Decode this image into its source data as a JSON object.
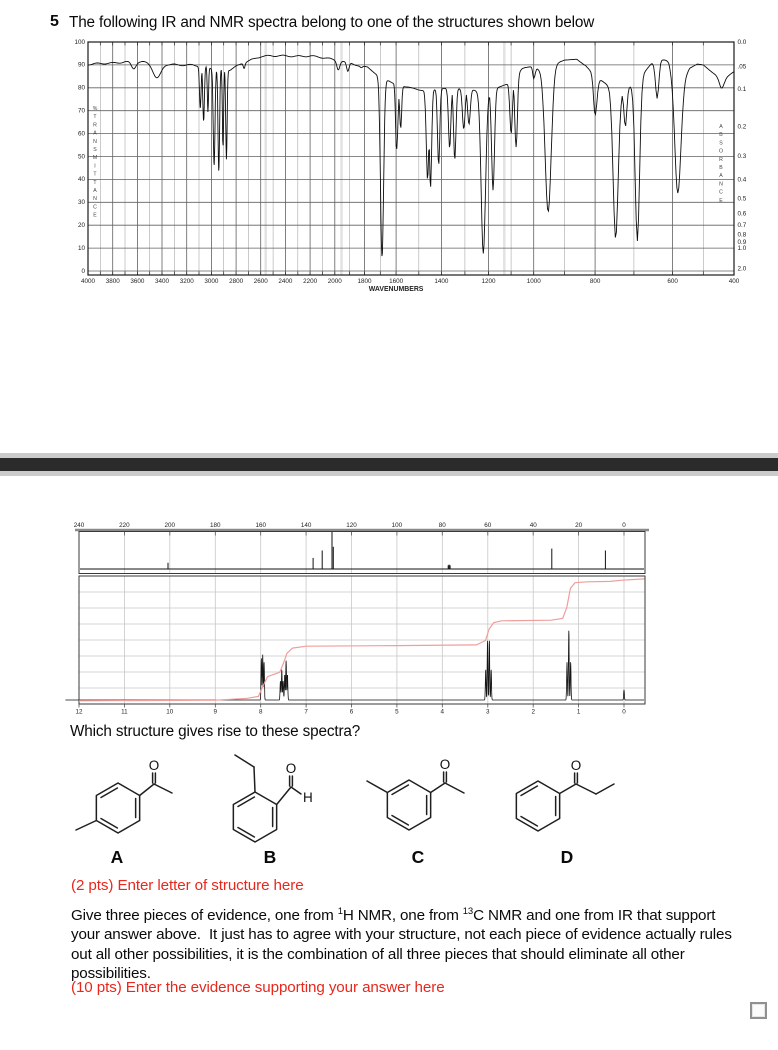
{
  "page": {
    "question_number": "5",
    "title": "The following IR and NMR spectra belong to one of the structures shown below",
    "question": "Which structure gives rise to these spectra?",
    "structure_prompt": "(2 pts) Enter letter of structure here",
    "evidence_prompt": "(10 pts) Enter the evidence supporting your answer here",
    "evidence_segments": [
      {
        "t": "Give three pieces of evidence, one from "
      },
      {
        "sup": "1"
      },
      {
        "t": "H NMR, one from "
      },
      {
        "sup": "13"
      },
      {
        "t": "C NMR and one from IR that support your answer above.  It just has to agree with your structure, not each piece of evidence actually rules out all other possibilities, it is the combination of all three pieces that should eliminate all other possibilities."
      }
    ]
  },
  "structures": [
    {
      "letter": "A"
    },
    {
      "letter": "B"
    },
    {
      "letter": "C"
    },
    {
      "letter": "D"
    }
  ],
  "colors": {
    "accent_red": "#e8271d",
    "separator_dark": "#2b2b2b",
    "separator_light": "#cbcbcb",
    "integral_red": "#f09e9b",
    "curve_black": "#0d0d0d",
    "grid_light": "#c8c8c8",
    "grid_dark": "#606060"
  },
  "chart_data": [
    {
      "type": "line",
      "name": "ir_spectrum",
      "xlabel": "WAVENUMBERS",
      "ylabel_left": "%TRANSMITTANCE",
      "ylabel_right": "ABSORBANCE",
      "x_axis_reversed": true,
      "x_ticks": [
        4000,
        3800,
        3600,
        3400,
        3200,
        3000,
        2800,
        2600,
        2400,
        2200,
        2000,
        1800,
        1600,
        1400,
        1200,
        1000,
        800,
        600,
        400
      ],
      "y_ticks_left": [
        100,
        90,
        80,
        70,
        60,
        50,
        40,
        30,
        20,
        10,
        0
      ],
      "y_ticks_right": [
        "0.0",
        ".05",
        "0.1",
        "0.2",
        "0.3",
        "0.4",
        "0.5",
        "0.6",
        "0.7",
        "0.8",
        "0.9",
        "1.0",
        "2.0"
      ],
      "x_scale_anchors": [
        [
          4000,
          0
        ],
        [
          2000,
          0.382
        ],
        [
          1800,
          0.428
        ],
        [
          1600,
          0.477
        ],
        [
          1400,
          0.547
        ],
        [
          1200,
          0.62
        ],
        [
          1000,
          0.69
        ],
        [
          800,
          0.785
        ],
        [
          600,
          0.905
        ],
        [
          400,
          1
        ]
      ],
      "baseline_percentT": [
        [
          4000,
          90
        ],
        [
          3700,
          91.5
        ],
        [
          3400,
          90.5
        ],
        [
          3150,
          90
        ],
        [
          2980,
          88
        ],
        [
          2850,
          88
        ],
        [
          2750,
          91
        ],
        [
          2600,
          93.5
        ],
        [
          2400,
          94
        ],
        [
          2200,
          94
        ],
        [
          2050,
          92.5
        ],
        [
          1900,
          91
        ],
        [
          1780,
          89
        ],
        [
          1720,
          86
        ],
        [
          1660,
          83
        ],
        [
          1620,
          82
        ],
        [
          1560,
          80
        ],
        [
          1500,
          79
        ],
        [
          1430,
          79
        ],
        [
          1380,
          80
        ],
        [
          1330,
          80
        ],
        [
          1260,
          79
        ],
        [
          1200,
          78
        ],
        [
          1150,
          80
        ],
        [
          1110,
          82
        ],
        [
          1050,
          88
        ],
        [
          1010,
          89
        ],
        [
          970,
          88
        ],
        [
          900,
          92
        ],
        [
          860,
          93
        ],
        [
          830,
          90
        ],
        [
          800,
          85
        ],
        [
          775,
          82
        ],
        [
          760,
          80
        ],
        [
          735,
          78
        ],
        [
          715,
          80
        ],
        [
          680,
          85
        ],
        [
          655,
          90
        ],
        [
          630,
          92
        ],
        [
          610,
          92
        ],
        [
          595,
          88
        ],
        [
          570,
          82
        ],
        [
          545,
          88
        ],
        [
          520,
          90
        ],
        [
          500,
          90
        ],
        [
          470,
          87
        ],
        [
          450,
          85
        ],
        [
          430,
          84
        ],
        [
          400,
          87
        ]
      ],
      "peaks_cm1_minT_width": [
        [
          3630,
          88.5,
          25
        ],
        [
          3440,
          84,
          45
        ],
        [
          3090,
          71,
          9
        ],
        [
          3063,
          65,
          9
        ],
        [
          3028,
          69,
          7
        ],
        [
          2978,
          46,
          10
        ],
        [
          2940,
          43,
          9
        ],
        [
          2906,
          54,
          7
        ],
        [
          2878,
          49,
          8
        ],
        [
          2735,
          89,
          10
        ],
        [
          1976,
          88,
          14
        ],
        [
          1912,
          87,
          12
        ],
        [
          1820,
          89,
          10
        ],
        [
          1689,
          6,
          14
        ],
        [
          1598,
          53,
          8
        ],
        [
          1580,
          62,
          6
        ],
        [
          1461,
          40,
          8
        ],
        [
          1448,
          36,
          7
        ],
        [
          1412,
          46,
          7
        ],
        [
          1365,
          54,
          7
        ],
        [
          1343,
          49,
          7
        ],
        [
          1305,
          62,
          8
        ],
        [
          1283,
          64,
          8
        ],
        [
          1222,
          8,
          13
        ],
        [
          1180,
          35,
          9
        ],
        [
          1100,
          60,
          8
        ],
        [
          1078,
          54,
          8
        ],
        [
          1000,
          84,
          6
        ],
        [
          953,
          26,
          14
        ],
        [
          800,
          68,
          7
        ],
        [
          747,
          14,
          9
        ],
        [
          722,
          63,
          5
        ],
        [
          691,
          13,
          8
        ],
        [
          640,
          75,
          6
        ],
        [
          583,
          34,
          14
        ],
        [
          440,
          80,
          10
        ]
      ]
    },
    {
      "type": "line",
      "name": "c13_nmr_spectrum",
      "x_unit": "ppm",
      "x_ticks": [
        240,
        220,
        200,
        180,
        160,
        140,
        120,
        100,
        80,
        60,
        40,
        20,
        0
      ],
      "peaks_ppm_intensity": [
        [
          200.8,
          0.17
        ],
        [
          136.9,
          0.3
        ],
        [
          132.9,
          0.5
        ],
        [
          128.6,
          1.0
        ],
        [
          128.0,
          0.6
        ],
        [
          77.4,
          0.1
        ],
        [
          77.0,
          0.12
        ],
        [
          76.6,
          0.1
        ],
        [
          31.8,
          0.55
        ],
        [
          8.2,
          0.5
        ]
      ]
    },
    {
      "type": "line",
      "name": "h1_nmr_spectrum",
      "x_unit": "ppm",
      "x_ticks": [
        12,
        11,
        10,
        9,
        8,
        7,
        6,
        5,
        4,
        3,
        2,
        1,
        0
      ],
      "peak_lines_ppm_height": [
        [
          7.985,
          0.33
        ],
        [
          7.955,
          0.36
        ],
        [
          7.925,
          0.3
        ],
        [
          7.565,
          0.15
        ],
        [
          7.535,
          0.24
        ],
        [
          7.505,
          0.15
        ],
        [
          7.47,
          0.2
        ],
        [
          7.44,
          0.31
        ],
        [
          7.41,
          0.2
        ],
        [
          3.045,
          0.24
        ],
        [
          3.005,
          0.47
        ],
        [
          2.965,
          0.47
        ],
        [
          2.925,
          0.24
        ],
        [
          1.255,
          0.3
        ],
        [
          1.215,
          0.55
        ],
        [
          1.175,
          0.3
        ],
        [
          0.0,
          0.08
        ]
      ],
      "relative_integrals": [
        2,
        1,
        2,
        2,
        3
      ],
      "integral_path": [
        [
          12.0,
          0.025
        ],
        [
          9.0,
          0.03
        ],
        [
          8.3,
          0.045
        ],
        [
          8.05,
          0.06
        ],
        [
          7.95,
          0.14
        ],
        [
          7.85,
          0.215
        ],
        [
          7.7,
          0.235
        ],
        [
          7.58,
          0.25
        ],
        [
          7.5,
          0.32
        ],
        [
          7.42,
          0.4
        ],
        [
          7.3,
          0.44
        ],
        [
          7.0,
          0.455
        ],
        [
          5.0,
          0.46
        ],
        [
          3.25,
          0.465
        ],
        [
          3.05,
          0.5
        ],
        [
          2.97,
          0.59
        ],
        [
          2.87,
          0.64
        ],
        [
          2.7,
          0.655
        ],
        [
          1.6,
          0.66
        ],
        [
          1.35,
          0.675
        ],
        [
          1.26,
          0.76
        ],
        [
          1.18,
          0.91
        ],
        [
          1.08,
          0.955
        ],
        [
          0.8,
          0.962
        ],
        [
          0.3,
          0.965
        ],
        [
          0.05,
          0.975
        ],
        [
          -0.45,
          0.985
        ]
      ]
    }
  ]
}
